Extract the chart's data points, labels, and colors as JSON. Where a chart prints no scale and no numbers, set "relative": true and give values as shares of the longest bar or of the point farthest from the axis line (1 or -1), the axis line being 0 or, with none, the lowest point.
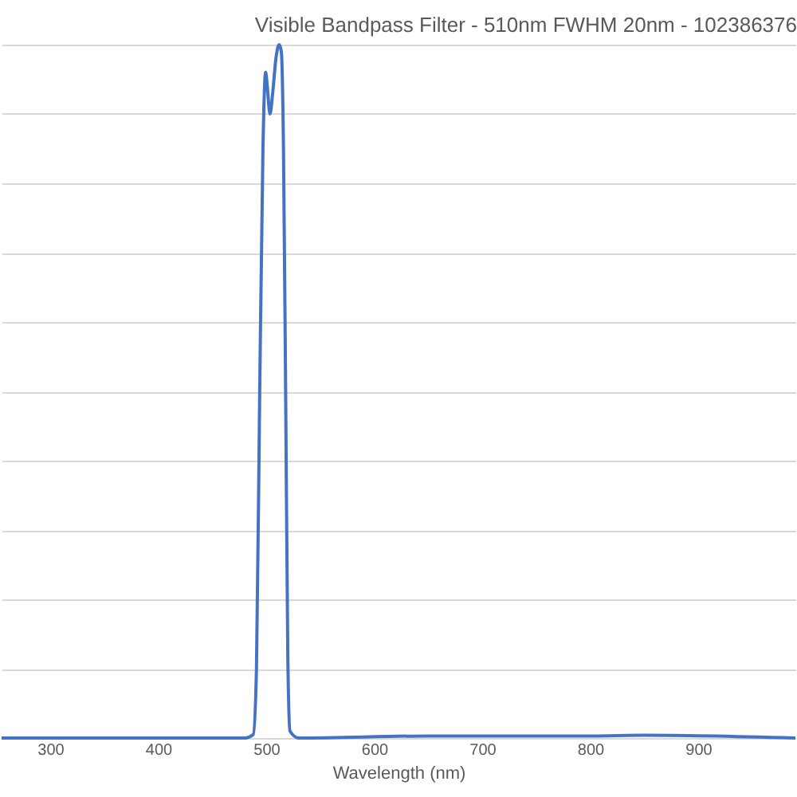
{
  "chart_data": {
    "type": "line",
    "title": "Visible Bandpass Filter - 510nm FWHM 20nm - 102386376",
    "xlabel": "Wavelength (nm)",
    "relative": true,
    "grid": "y",
    "xlim": [
      255,
      990
    ],
    "xticks": [
      300,
      400,
      500,
      600,
      700,
      800,
      900
    ],
    "series": [
      {
        "color": "#4472c4",
        "x": [
          255,
          480,
          488,
          491,
          494,
          497,
          499.5,
          501,
          503.5,
          506,
          509,
          512,
          514,
          516,
          518,
          520,
          522,
          530,
          650,
          800,
          850,
          990
        ],
        "values": [
          0,
          0,
          0.005,
          0.1,
          0.5,
          0.85,
          0.96,
          0.94,
          0.9,
          0.93,
          0.98,
          1.0,
          0.99,
          0.85,
          0.5,
          0.12,
          0.01,
          0,
          0.003,
          0.003,
          0.004,
          0
        ]
      }
    ]
  }
}
